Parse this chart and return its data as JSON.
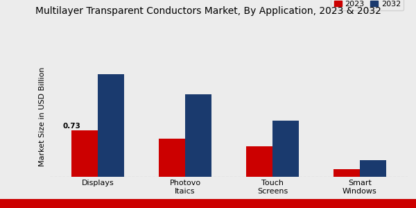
{
  "title": "Multilayer Transparent Conductors Market, By Application, 2023 & 2032",
  "ylabel": "Market Size in USD Billion",
  "categories": [
    "Displays",
    "Photovo\nItaics",
    "Touch\nScreens",
    "Smart\nWindows"
  ],
  "values_2023": [
    0.73,
    0.6,
    0.48,
    0.12
  ],
  "values_2032": [
    1.62,
    1.3,
    0.88,
    0.26
  ],
  "color_2023": "#cc0000",
  "color_2032": "#1a3a6e",
  "bar_width": 0.3,
  "annotation_2023_displays": "0.73",
  "background_color": "#ececec",
  "legend_labels": [
    "2023",
    "2032"
  ],
  "ylim": [
    0,
    1.9
  ],
  "title_fontsize": 10,
  "ylabel_fontsize": 8,
  "xtick_fontsize": 8,
  "legend_fontsize": 8,
  "annot_fontsize": 7.5,
  "red_strip_color": "#cc0000"
}
